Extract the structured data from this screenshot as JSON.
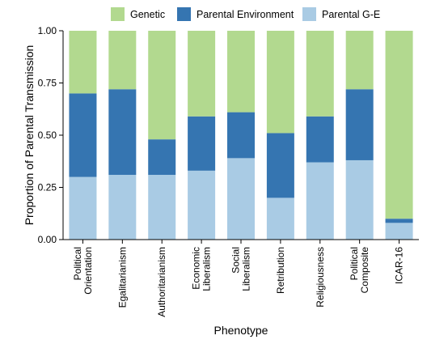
{
  "chart_data": {
    "type": "bar",
    "stacked": true,
    "normalized": true,
    "title": "",
    "xlabel": "Phenotype",
    "ylabel": "Proportion of Parental Transmission",
    "ylim": [
      0,
      1
    ],
    "yticks": [
      "0.00",
      "0.25",
      "0.50",
      "0.75",
      "1.00"
    ],
    "legend_position": "top",
    "grid": false,
    "categories": [
      [
        "Political",
        "Orientation"
      ],
      [
        "Egalitarianism"
      ],
      [
        "Authoritarianism"
      ],
      [
        "Economic",
        "Liberalism"
      ],
      [
        "Social",
        "Liberalism"
      ],
      [
        "Retribution"
      ],
      [
        "Religiousness"
      ],
      [
        "Political",
        "Composite"
      ],
      [
        "ICAR-16"
      ]
    ],
    "series": [
      {
        "name": "Parental G-E",
        "color": "#a9cbe4",
        "values": [
          0.3,
          0.31,
          0.31,
          0.33,
          0.39,
          0.2,
          0.37,
          0.38,
          0.08
        ]
      },
      {
        "name": "Parental Environment",
        "color": "#3575b1",
        "values": [
          0.4,
          0.41,
          0.17,
          0.26,
          0.22,
          0.31,
          0.22,
          0.34,
          0.02
        ]
      },
      {
        "name": "Genetic",
        "color": "#b2d98f",
        "values": [
          0.3,
          0.28,
          0.52,
          0.41,
          0.39,
          0.49,
          0.41,
          0.28,
          0.9
        ]
      }
    ],
    "legend_order": [
      "Genetic",
      "Parental Environment",
      "Parental G-E"
    ]
  }
}
